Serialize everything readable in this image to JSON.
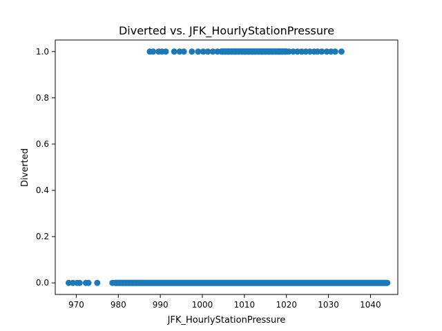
{
  "chart_data": {
    "type": "scatter",
    "title": "Diverted vs. JFK_HourlyStationPressure",
    "xlabel": "JFK_HourlyStationPressure",
    "ylabel": "Diverted",
    "xlim": [
      965,
      1046.5
    ],
    "ylim": [
      -0.05,
      1.05
    ],
    "xticks": [
      970,
      980,
      990,
      1000,
      1010,
      1020,
      1030,
      1040
    ],
    "yticks": [
      0.0,
      0.2,
      0.4,
      0.6,
      0.8,
      1.0
    ],
    "ytick_labels": [
      "0.0",
      "0.2",
      "0.4",
      "0.6",
      "0.8",
      "1.0"
    ],
    "grid": false,
    "marker_color": "#1f77b4",
    "series": [
      {
        "y_value": 1,
        "x_values": [
          987.5,
          988.3,
          989.6,
          990.4,
          991.3,
          993.3,
          994.6,
          995.6,
          997.5,
          999.0,
          1000.2,
          1001.3,
          1002.5,
          1003.6,
          1004.8,
          1005.5,
          1006.2,
          1007.0,
          1007.8,
          1008.6,
          1009.4,
          1010.2,
          1011.0,
          1011.8,
          1012.6,
          1013.4,
          1014.2,
          1015.0,
          1015.8,
          1016.6,
          1017.4,
          1018.2,
          1019.0,
          1019.8,
          1020.6,
          1021.6,
          1022.6,
          1023.6,
          1024.6,
          1025.6,
          1026.6,
          1027.4,
          1028.4,
          1029.6,
          1030.6,
          1031.6,
          1033.1
        ],
        "fill_from": 1004.5,
        "fill_to": 1020.0
      },
      {
        "y_value": 0,
        "x_values": [
          968.2,
          969.2,
          970.2,
          970.8,
          972.3,
          972.9,
          975.0,
          978.6,
          979.5,
          980.2,
          981.0,
          981.8,
          982.6,
          983.4,
          984.2
        ],
        "fill_from": 979.2,
        "fill_to": 1044.0
      }
    ]
  }
}
